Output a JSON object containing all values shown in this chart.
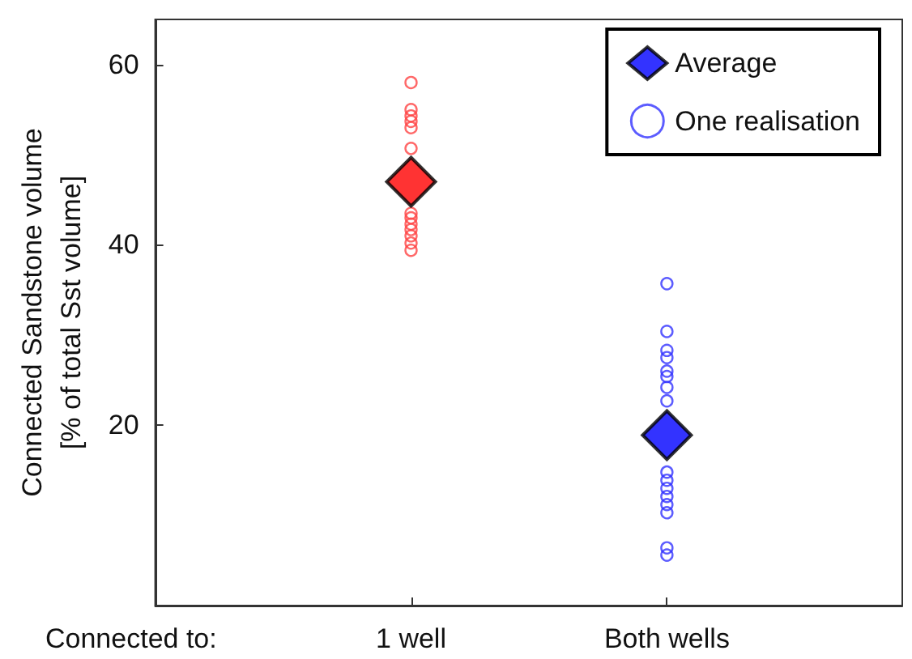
{
  "chart_data": {
    "type": "scatter",
    "xlabel": "Connected to:",
    "ylabel": "Connected Sandstone volume\n[% of total Sst volume]",
    "categories": [
      "1 well",
      "Both wells"
    ],
    "ylim": [
      0,
      65
    ],
    "yticks": [
      20,
      40,
      60
    ],
    "grid": false,
    "legend": "top right",
    "series": [
      {
        "name": "One realisation",
        "marker": "circle",
        "x": [
          "1 well",
          "1 well",
          "1 well",
          "1 well",
          "1 well",
          "1 well",
          "1 well",
          "1 well",
          "1 well",
          "1 well",
          "1 well",
          "1 well",
          "1 well",
          "Both wells",
          "Both wells",
          "Both wells",
          "Both wells",
          "Both wells",
          "Both wells",
          "Both wells",
          "Both wells",
          "Both wells",
          "Both wells",
          "Both wells",
          "Both wells",
          "Both wells",
          "Both wells",
          "Both wells",
          "Both wells"
        ],
        "values": [
          58,
          55,
          54.3,
          53.7,
          53,
          50.7,
          43.5,
          43,
          42.3,
          41.7,
          41,
          40.2,
          39.4,
          35.7,
          30.4,
          28.3,
          27.5,
          26,
          25.4,
          24.2,
          22.7,
          14.8,
          13.9,
          13,
          12.1,
          11.2,
          10.3,
          6.4,
          5.6
        ],
        "colors": [
          "#ff4444",
          "#ff4444",
          "#ff4444",
          "#ff4444",
          "#ff4444",
          "#ff4444",
          "#ff4444",
          "#ff4444",
          "#ff4444",
          "#ff4444",
          "#ff4444",
          "#ff4444",
          "#ff4444",
          "#3333ff",
          "#3333ff",
          "#3333ff",
          "#3333ff",
          "#3333ff",
          "#3333ff",
          "#3333ff",
          "#3333ff",
          "#3333ff",
          "#3333ff",
          "#3333ff",
          "#3333ff",
          "#3333ff",
          "#3333ff",
          "#3333ff",
          "#3333ff"
        ]
      },
      {
        "name": "Average",
        "marker": "diamond",
        "x": [
          "1 well",
          "Both wells"
        ],
        "values": [
          47,
          18.9
        ],
        "colors": [
          "#ff0000",
          "#0000ff"
        ]
      }
    ]
  }
}
